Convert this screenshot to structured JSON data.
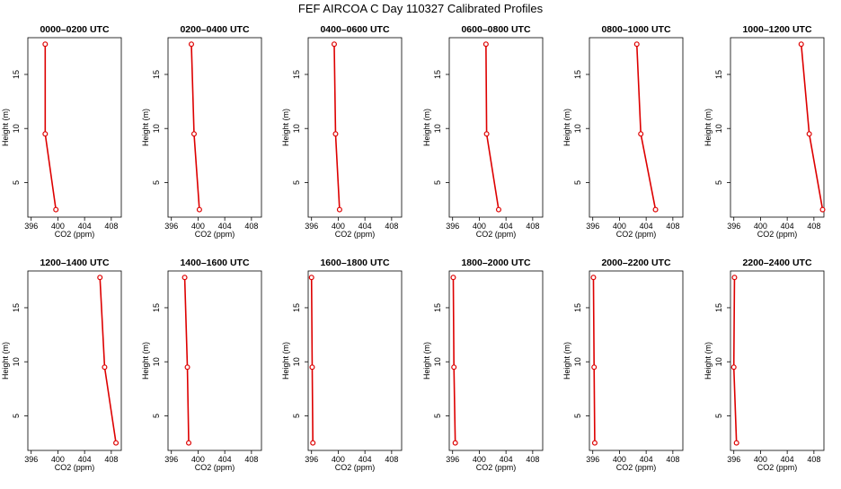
{
  "title": "FEF AIRCOA C  Day 110327  Calibrated Profiles",
  "colors": {
    "profile_line": "#dd0000",
    "axes": "#000000",
    "background": "#ffffff"
  },
  "chart_data": [
    {
      "type": "line",
      "title": "0000–0200 UTC",
      "xlabel": "CO2 (ppm)",
      "ylabel": "Height (m)",
      "xlim": [
        395.5,
        409.5
      ],
      "ylim": [
        1.8,
        18.4
      ],
      "xticks": [
        396,
        400,
        404,
        408
      ],
      "yticks": [
        5,
        10,
        15
      ],
      "series": [
        {
          "name": "profile",
          "x": [
            398.1,
            398.1,
            399.7
          ],
          "y": [
            17.8,
            9.5,
            2.5
          ]
        }
      ]
    },
    {
      "type": "line",
      "title": "0200–0400 UTC",
      "xlabel": "CO2 (ppm)",
      "ylabel": "Height (m)",
      "xlim": [
        395.5,
        409.5
      ],
      "ylim": [
        1.8,
        18.4
      ],
      "xticks": [
        396,
        400,
        404,
        408
      ],
      "yticks": [
        5,
        10,
        15
      ],
      "series": [
        {
          "name": "profile",
          "x": [
            399.0,
            399.4,
            400.2
          ],
          "y": [
            17.8,
            9.5,
            2.5
          ]
        }
      ]
    },
    {
      "type": "line",
      "title": "0400–0600 UTC",
      "xlabel": "CO2 (ppm)",
      "ylabel": "Height (m)",
      "xlim": [
        395.5,
        409.5
      ],
      "ylim": [
        1.8,
        18.4
      ],
      "xticks": [
        396,
        400,
        404,
        408
      ],
      "yticks": [
        5,
        10,
        15
      ],
      "series": [
        {
          "name": "profile",
          "x": [
            399.4,
            399.6,
            400.2
          ],
          "y": [
            17.8,
            9.5,
            2.5
          ]
        }
      ]
    },
    {
      "type": "line",
      "title": "0600–0800 UTC",
      "xlabel": "CO2 (ppm)",
      "ylabel": "Height (m)",
      "xlim": [
        395.5,
        409.5
      ],
      "ylim": [
        1.8,
        18.4
      ],
      "xticks": [
        396,
        400,
        404,
        408
      ],
      "yticks": [
        5,
        10,
        15
      ],
      "series": [
        {
          "name": "profile",
          "x": [
            401.0,
            401.1,
            402.9
          ],
          "y": [
            17.8,
            9.5,
            2.5
          ]
        }
      ]
    },
    {
      "type": "line",
      "title": "0800–1000 UTC",
      "xlabel": "CO2 (ppm)",
      "ylabel": "Height (m)",
      "xlim": [
        395.5,
        409.5
      ],
      "ylim": [
        1.8,
        18.4
      ],
      "xticks": [
        396,
        400,
        404,
        408
      ],
      "yticks": [
        5,
        10,
        15
      ],
      "series": [
        {
          "name": "profile",
          "x": [
            402.6,
            403.2,
            405.4
          ],
          "y": [
            17.8,
            9.5,
            2.5
          ]
        }
      ]
    },
    {
      "type": "line",
      "title": "1000–1200 UTC",
      "xlabel": "CO2 (ppm)",
      "ylabel": "Height (m)",
      "xlim": [
        395.5,
        409.5
      ],
      "ylim": [
        1.8,
        18.4
      ],
      "xticks": [
        396,
        400,
        404,
        408
      ],
      "yticks": [
        5,
        10,
        15
      ],
      "series": [
        {
          "name": "profile",
          "x": [
            406.1,
            407.3,
            409.3
          ],
          "y": [
            17.8,
            9.5,
            2.5
          ]
        }
      ]
    },
    {
      "type": "line",
      "title": "1200–1400 UTC",
      "xlabel": "CO2 (ppm)",
      "ylabel": "Height (m)",
      "xlim": [
        395.5,
        409.5
      ],
      "ylim": [
        1.8,
        18.4
      ],
      "xticks": [
        396,
        400,
        404,
        408
      ],
      "yticks": [
        5,
        10,
        15
      ],
      "series": [
        {
          "name": "profile",
          "x": [
            406.3,
            407.0,
            408.7
          ],
          "y": [
            17.8,
            9.5,
            2.5
          ]
        }
      ]
    },
    {
      "type": "line",
      "title": "1400–1600 UTC",
      "xlabel": "CO2 (ppm)",
      "ylabel": "Height (m)",
      "xlim": [
        395.5,
        409.5
      ],
      "ylim": [
        1.8,
        18.4
      ],
      "xticks": [
        396,
        400,
        404,
        408
      ],
      "yticks": [
        5,
        10,
        15
      ],
      "series": [
        {
          "name": "profile",
          "x": [
            398.0,
            398.4,
            398.6
          ],
          "y": [
            17.8,
            9.5,
            2.5
          ]
        }
      ]
    },
    {
      "type": "line",
      "title": "1600–1800 UTC",
      "xlabel": "CO2 (ppm)",
      "ylabel": "Height (m)",
      "xlim": [
        395.5,
        409.5
      ],
      "ylim": [
        1.8,
        18.4
      ],
      "xticks": [
        396,
        400,
        404,
        408
      ],
      "yticks": [
        5,
        10,
        15
      ],
      "series": [
        {
          "name": "profile",
          "x": [
            396.0,
            396.1,
            396.2
          ],
          "y": [
            17.8,
            9.5,
            2.5
          ]
        }
      ]
    },
    {
      "type": "line",
      "title": "1800–2000 UTC",
      "xlabel": "CO2 (ppm)",
      "ylabel": "Height (m)",
      "xlim": [
        395.5,
        409.5
      ],
      "ylim": [
        1.8,
        18.4
      ],
      "xticks": [
        396,
        400,
        404,
        408
      ],
      "yticks": [
        5,
        10,
        15
      ],
      "series": [
        {
          "name": "profile",
          "x": [
            396.1,
            396.2,
            396.4
          ],
          "y": [
            17.8,
            9.5,
            2.5
          ]
        }
      ]
    },
    {
      "type": "line",
      "title": "2000–2200 UTC",
      "xlabel": "CO2 (ppm)",
      "ylabel": "Height (m)",
      "xlim": [
        395.5,
        409.5
      ],
      "ylim": [
        1.8,
        18.4
      ],
      "xticks": [
        396,
        400,
        404,
        408
      ],
      "yticks": [
        5,
        10,
        15
      ],
      "series": [
        {
          "name": "profile",
          "x": [
            396.1,
            396.2,
            396.3
          ],
          "y": [
            17.8,
            9.5,
            2.5
          ]
        }
      ]
    },
    {
      "type": "line",
      "title": "2200–2400 UTC",
      "xlabel": "CO2 (ppm)",
      "ylabel": "Height (m)",
      "xlim": [
        395.5,
        409.5
      ],
      "ylim": [
        1.8,
        18.4
      ],
      "xticks": [
        396,
        400,
        404,
        408
      ],
      "yticks": [
        5,
        10,
        15
      ],
      "series": [
        {
          "name": "profile",
          "x": [
            396.1,
            396.0,
            396.4
          ],
          "y": [
            17.8,
            9.5,
            2.5
          ]
        }
      ]
    }
  ]
}
